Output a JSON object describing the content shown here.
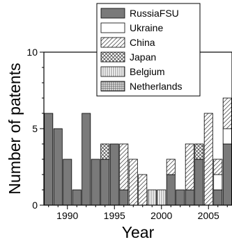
{
  "chart_data": {
    "type": "bar",
    "stacked": true,
    "xlabel": "Year",
    "ylabel": "Number of patents",
    "ylim": [
      0,
      10
    ],
    "xlim": [
      1987.5,
      2007.5
    ],
    "x_tick_labels": [
      "1990",
      "1995",
      "2000",
      "2005"
    ],
    "y_tick_labels": [
      "0",
      "5",
      "10"
    ],
    "grid": false,
    "legend_placement": "top-right",
    "years": [
      1988,
      1989,
      1990,
      1991,
      1992,
      1993,
      1994,
      1995,
      1996,
      1997,
      1998,
      1999,
      2000,
      2001,
      2002,
      2003,
      2004,
      2005,
      2006,
      2007
    ],
    "series": [
      {
        "name": "RussiaFSU",
        "pattern": "solid-gray",
        "values": [
          6,
          5,
          3,
          1,
          6,
          3,
          3,
          4,
          1,
          0,
          0,
          0,
          0,
          2,
          1,
          1,
          3,
          0,
          1,
          4
        ]
      },
      {
        "name": "Ukraine",
        "pattern": "white",
        "values": [
          0,
          0,
          0,
          0,
          0,
          0,
          0,
          0,
          0,
          0,
          0,
          0,
          0,
          0,
          0,
          0,
          0,
          0,
          1,
          1
        ]
      },
      {
        "name": "China",
        "pattern": "diagonal",
        "values": [
          0,
          0,
          0,
          0,
          0,
          0,
          0,
          0,
          3,
          3,
          2,
          0,
          0,
          1,
          0,
          3,
          0,
          6,
          1,
          2
        ]
      },
      {
        "name": "Japan",
        "pattern": "crosshatch",
        "values": [
          0,
          0,
          0,
          0,
          0,
          0,
          1,
          0,
          0,
          0,
          0,
          0,
          0,
          0,
          0,
          0,
          1,
          0,
          0,
          0
        ]
      },
      {
        "name": "Belgium",
        "pattern": "vertical",
        "values": [
          0,
          0,
          0,
          0,
          0,
          0,
          0,
          0,
          0,
          0,
          0,
          1,
          1,
          0,
          0,
          0,
          0,
          0,
          0,
          0
        ]
      },
      {
        "name": "Netherlands",
        "pattern": "grid",
        "values": [
          0,
          0,
          0,
          0,
          0,
          0,
          0,
          0,
          0,
          0,
          0,
          0,
          0,
          0,
          0,
          0,
          0,
          0,
          0,
          0
        ]
      }
    ]
  }
}
